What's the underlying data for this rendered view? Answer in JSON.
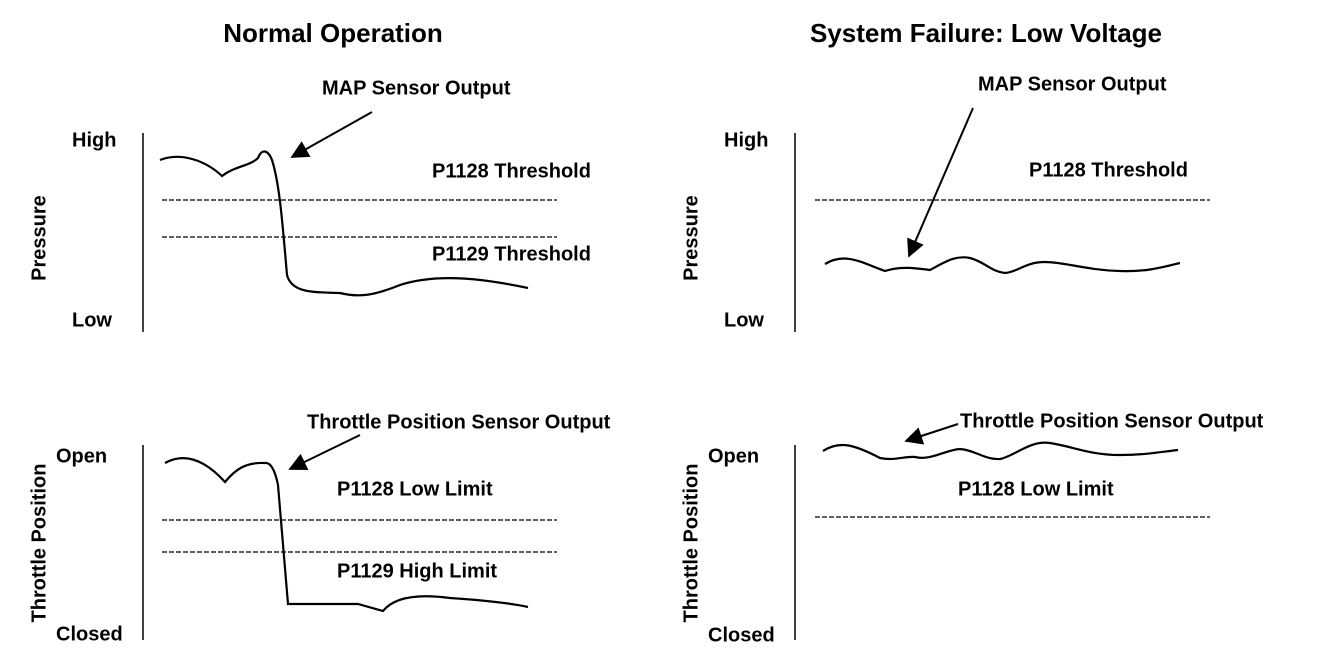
{
  "panels": [
    {
      "title": "Normal Operation",
      "charts": [
        {
          "y_label": "Pressure",
          "top_label": "High",
          "bottom_label": "Low",
          "callout": "MAP Sensor Output",
          "thresholds": [
            "P1128 Threshold",
            "P1129 Threshold"
          ]
        },
        {
          "y_label": "Throttle Position",
          "top_label": "Open",
          "bottom_label": "Closed",
          "callout": "Throttle Position Sensor Output",
          "thresholds": [
            "P1128 Low Limit",
            "P1129 High Limit"
          ]
        }
      ]
    },
    {
      "title": "System Failure: Low Voltage",
      "charts": [
        {
          "y_label": "Pressure",
          "top_label": "High",
          "bottom_label": "Low",
          "callout": "MAP Sensor Output",
          "thresholds": [
            "P1128 Threshold"
          ]
        },
        {
          "y_label": "Throttle Position",
          "top_label": "Open",
          "bottom_label": "Closed",
          "callout": "Throttle Position Sensor Output",
          "thresholds": [
            "P1128 Low Limit"
          ]
        }
      ]
    }
  ]
}
